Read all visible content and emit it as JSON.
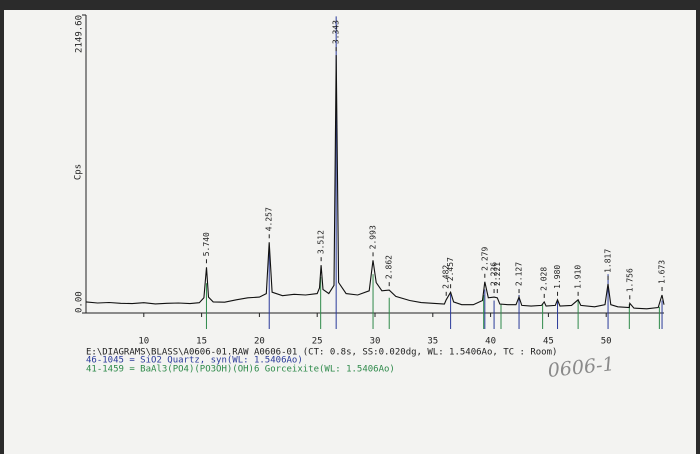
{
  "chart_data": {
    "type": "line",
    "y_label": "Cps",
    "color": "#111111",
    "xlim": [
      5,
      55
    ],
    "ylim": [
      0,
      2149.6
    ],
    "xticks": [
      10,
      15,
      20,
      25,
      30,
      35,
      40,
      45,
      50
    ],
    "yticks": [
      {
        "value": 0,
        "label": "0.00"
      },
      {
        "value": 2149.6,
        "label": "2149.60"
      }
    ],
    "x": [
      5,
      6,
      7,
      8,
      9,
      10,
      11,
      12,
      13,
      14,
      14.8,
      15.2,
      15.42,
      15.6,
      16,
      17,
      18,
      19,
      20,
      20.6,
      20.85,
      21.1,
      22,
      23,
      24,
      25,
      25.2,
      25.34,
      25.5,
      26,
      26.45,
      26.64,
      26.85,
      27.5,
      28.5,
      29.5,
      29.83,
      30.1,
      30.6,
      31.23,
      31.8,
      33,
      34,
      35,
      36,
      36.16,
      36.54,
      36.8,
      37.5,
      38.5,
      39.3,
      39.5,
      39.8,
      40.3,
      40.58,
      40.8,
      41.5,
      42.2,
      42.46,
      42.7,
      43.5,
      44.4,
      44.64,
      44.8,
      45.6,
      45.79,
      46,
      47,
      47.57,
      47.8,
      49,
      49.9,
      50.16,
      50.4,
      51,
      52,
      52.04,
      52.4,
      53.5,
      54.5,
      54.83,
      55
    ],
    "values": [
      80,
      72,
      76,
      70,
      68,
      74,
      66,
      70,
      72,
      68,
      74,
      110,
      330,
      115,
      80,
      78,
      95,
      110,
      115,
      140,
      510,
      150,
      125,
      135,
      130,
      140,
      180,
      345,
      170,
      140,
      200,
      1860,
      220,
      140,
      130,
      160,
      380,
      220,
      160,
      165,
      120,
      90,
      75,
      70,
      65,
      95,
      150,
      80,
      60,
      60,
      90,
      225,
      110,
      115,
      110,
      65,
      60,
      60,
      115,
      55,
      50,
      55,
      80,
      50,
      55,
      95,
      50,
      55,
      95,
      55,
      45,
      60,
      210,
      60,
      45,
      40,
      70,
      35,
      30,
      40,
      130,
      60
    ],
    "peak_labels": [
      {
        "x": 15.42,
        "label": "5.740"
      },
      {
        "x": 20.85,
        "label": "4.257"
      },
      {
        "x": 25.34,
        "label": "3.512"
      },
      {
        "x": 26.64,
        "label": "3.343"
      },
      {
        "x": 29.83,
        "label": "2.993"
      },
      {
        "x": 31.23,
        "label": "2.862"
      },
      {
        "x": 36.16,
        "label": "2.482"
      },
      {
        "x": 36.54,
        "label": "2.457"
      },
      {
        "x": 39.5,
        "label": "2.279"
      },
      {
        "x": 40.3,
        "label": "2.236"
      },
      {
        "x": 40.58,
        "label": "2.221"
      },
      {
        "x": 42.46,
        "label": "2.127"
      },
      {
        "x": 44.64,
        "label": "2.028"
      },
      {
        "x": 45.79,
        "label": "1.980"
      },
      {
        "x": 47.57,
        "label": "1.910"
      },
      {
        "x": 50.16,
        "label": "1.817"
      },
      {
        "x": 52.04,
        "label": "1.756"
      },
      {
        "x": 54.83,
        "label": "1.673"
      }
    ],
    "file_line": "E:\\DIAGRAMS\\BLASS\\A0606-01.RAW A0606-01 (CT: 0.8s, SS:0.020dg, WL: 1.5406Ao, TC : Room)",
    "reference_patterns": [
      {
        "name": "46-1045 = SiO2 Quartz, syn(WL: 1.5406Ao)",
        "color": "#2a3a9a",
        "x": [
          20.85,
          26.64,
          36.54,
          39.5,
          40.3,
          42.46,
          45.79,
          50.16,
          54.83
        ],
        "values": [
          470,
          2140,
          150,
          170,
          90,
          130,
          90,
          280,
          90
        ]
      },
      {
        "name": "41-1459 = BaAl3(PO4)(PO3OH)(OH)6 Gorceixite(WL: 1.5406Ao)",
        "color": "#2e8a4a",
        "x": [
          15.42,
          25.3,
          29.83,
          31.23,
          39.4,
          40.9,
          44.5,
          47.57,
          52.0,
          54.6
        ],
        "values": [
          215,
          260,
          280,
          110,
          130,
          65,
          65,
          90,
          65,
          45
        ]
      }
    ],
    "handwritten_note": "0606-1"
  }
}
